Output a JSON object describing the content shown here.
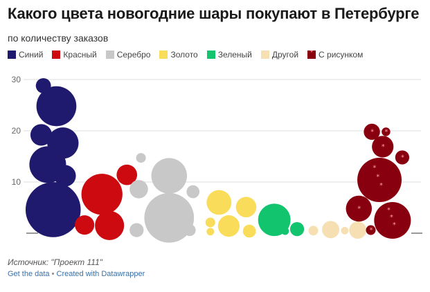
{
  "header": {
    "title": "Какого цвета новогодние шары покупают в Петербурге",
    "subtitle": "по количеству заказов"
  },
  "legend": [
    {
      "label": "Синий",
      "color": "#201a6e",
      "icon": "square"
    },
    {
      "label": "Красный",
      "color": "#cc0a10",
      "icon": "square"
    },
    {
      "label": "Серебро",
      "color": "#c8c8c8",
      "icon": "square"
    },
    {
      "label": "Золото",
      "color": "#f9dd5a",
      "icon": "square"
    },
    {
      "label": "Зеленый",
      "color": "#12c46e",
      "icon": "square"
    },
    {
      "label": "Другой",
      "color": "#f6e0b3",
      "icon": "square"
    },
    {
      "label": "С рисунком",
      "color": "#880010",
      "icon": "star-square"
    }
  ],
  "footer": {
    "source": "Источник: \"Проект 111\"",
    "get_data": "Get the data",
    "separator": "•",
    "created_with": "Created with Datawrapper"
  },
  "chart_data": {
    "type": "scatter",
    "subtype": "bubble",
    "ylabel": "",
    "xlabel": "",
    "ylim": [
      0,
      30
    ],
    "yticks": [
      10,
      20,
      30
    ],
    "grid": true,
    "legend_position": "top",
    "series": [
      {
        "name": "Синий",
        "color": "#201a6e",
        "points": [
          {
            "x": 1.0,
            "y": 28.8,
            "r": 1.4
          },
          {
            "x": 2.2,
            "y": 24.8,
            "r": 3.7
          },
          {
            "x": 0.8,
            "y": 19.2,
            "r": 2.0
          },
          {
            "x": 2.8,
            "y": 17.6,
            "r": 2.9
          },
          {
            "x": 1.4,
            "y": 13.4,
            "r": 3.4
          },
          {
            "x": 3.0,
            "y": 11.2,
            "r": 2.0
          },
          {
            "x": 1.9,
            "y": 4.6,
            "r": 5.1
          }
        ]
      },
      {
        "name": "Красный",
        "color": "#cc0a10",
        "points": [
          {
            "x": 6.4,
            "y": 7.6,
            "r": 3.8
          },
          {
            "x": 8.7,
            "y": 11.4,
            "r": 1.9
          },
          {
            "x": 4.8,
            "y": 1.6,
            "r": 1.8
          },
          {
            "x": 7.1,
            "y": 1.5,
            "r": 2.7
          }
        ]
      },
      {
        "name": "Серебро",
        "color": "#c8c8c8",
        "points": [
          {
            "x": 10.0,
            "y": 14.7,
            "r": 0.9
          },
          {
            "x": 12.6,
            "y": 11.2,
            "r": 3.3
          },
          {
            "x": 9.8,
            "y": 8.6,
            "r": 1.7
          },
          {
            "x": 14.8,
            "y": 8.1,
            "r": 1.2
          },
          {
            "x": 12.6,
            "y": 3.0,
            "r": 4.6
          },
          {
            "x": 9.6,
            "y": 0.6,
            "r": 1.3
          },
          {
            "x": 14.5,
            "y": 0.6,
            "r": 1.1
          }
        ]
      },
      {
        "name": "Золото",
        "color": "#f9dd5a",
        "points": [
          {
            "x": 17.2,
            "y": 6.0,
            "r": 2.3
          },
          {
            "x": 19.7,
            "y": 5.1,
            "r": 1.9
          },
          {
            "x": 16.4,
            "y": 2.1,
            "r": 0.9
          },
          {
            "x": 18.1,
            "y": 1.4,
            "r": 2.0
          },
          {
            "x": 16.4,
            "y": 0.3,
            "r": 0.7
          },
          {
            "x": 20.0,
            "y": 0.4,
            "r": 1.2
          }
        ]
      },
      {
        "name": "Зеленый",
        "color": "#12c46e",
        "points": [
          {
            "x": 22.3,
            "y": 2.6,
            "r": 3.0
          },
          {
            "x": 24.4,
            "y": 0.8,
            "r": 1.3
          },
          {
            "x": 23.3,
            "y": 0.4,
            "r": 0.7
          }
        ]
      },
      {
        "name": "Другой",
        "color": "#f6e0b3",
        "points": [
          {
            "x": 25.9,
            "y": 0.5,
            "r": 0.9
          },
          {
            "x": 27.5,
            "y": 0.7,
            "r": 1.6
          },
          {
            "x": 28.8,
            "y": 0.5,
            "r": 0.7
          },
          {
            "x": 30.0,
            "y": 0.6,
            "r": 1.6
          }
        ]
      },
      {
        "name": "С рисунком",
        "color": "#880010",
        "points": [
          {
            "x": 31.3,
            "y": 19.8,
            "r": 1.5
          },
          {
            "x": 32.6,
            "y": 19.8,
            "r": 0.8
          },
          {
            "x": 32.3,
            "y": 16.9,
            "r": 2.0
          },
          {
            "x": 34.1,
            "y": 14.8,
            "r": 1.3
          },
          {
            "x": 32.0,
            "y": 10.4,
            "r": 4.1
          },
          {
            "x": 30.1,
            "y": 4.8,
            "r": 2.4
          },
          {
            "x": 33.2,
            "y": 2.5,
            "r": 3.4
          },
          {
            "x": 31.2,
            "y": 0.6,
            "r": 0.9
          }
        ]
      }
    ]
  }
}
